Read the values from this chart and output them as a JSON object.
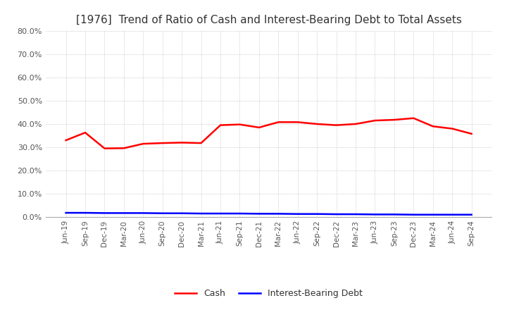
{
  "title": "[1976]  Trend of Ratio of Cash and Interest-Bearing Debt to Total Assets",
  "x_labels": [
    "Jun-19",
    "Sep-19",
    "Dec-19",
    "Mar-20",
    "Jun-20",
    "Sep-20",
    "Dec-20",
    "Mar-21",
    "Jun-21",
    "Sep-21",
    "Dec-21",
    "Mar-22",
    "Jun-22",
    "Sep-22",
    "Dec-22",
    "Mar-23",
    "Jun-23",
    "Sep-23",
    "Dec-23",
    "Mar-24",
    "Jun-24",
    "Sep-24"
  ],
  "cash": [
    0.33,
    0.363,
    0.295,
    0.296,
    0.315,
    0.318,
    0.32,
    0.318,
    0.395,
    0.398,
    0.385,
    0.408,
    0.408,
    0.4,
    0.395,
    0.4,
    0.415,
    0.418,
    0.425,
    0.39,
    0.38,
    0.358
  ],
  "interest_bearing_debt": [
    0.018,
    0.018,
    0.017,
    0.017,
    0.017,
    0.016,
    0.016,
    0.015,
    0.015,
    0.015,
    0.014,
    0.014,
    0.013,
    0.013,
    0.012,
    0.012,
    0.011,
    0.011,
    0.01,
    0.01,
    0.01,
    0.01
  ],
  "cash_color": "#ff0000",
  "debt_color": "#0000ff",
  "grid_color": "#bbbbbb",
  "background_color": "#ffffff",
  "ylim": [
    0.0,
    0.8
  ],
  "yticks": [
    0.0,
    0.1,
    0.2,
    0.3,
    0.4,
    0.5,
    0.6,
    0.7,
    0.8
  ],
  "title_fontsize": 11,
  "legend_labels": [
    "Cash",
    "Interest-Bearing Debt"
  ]
}
